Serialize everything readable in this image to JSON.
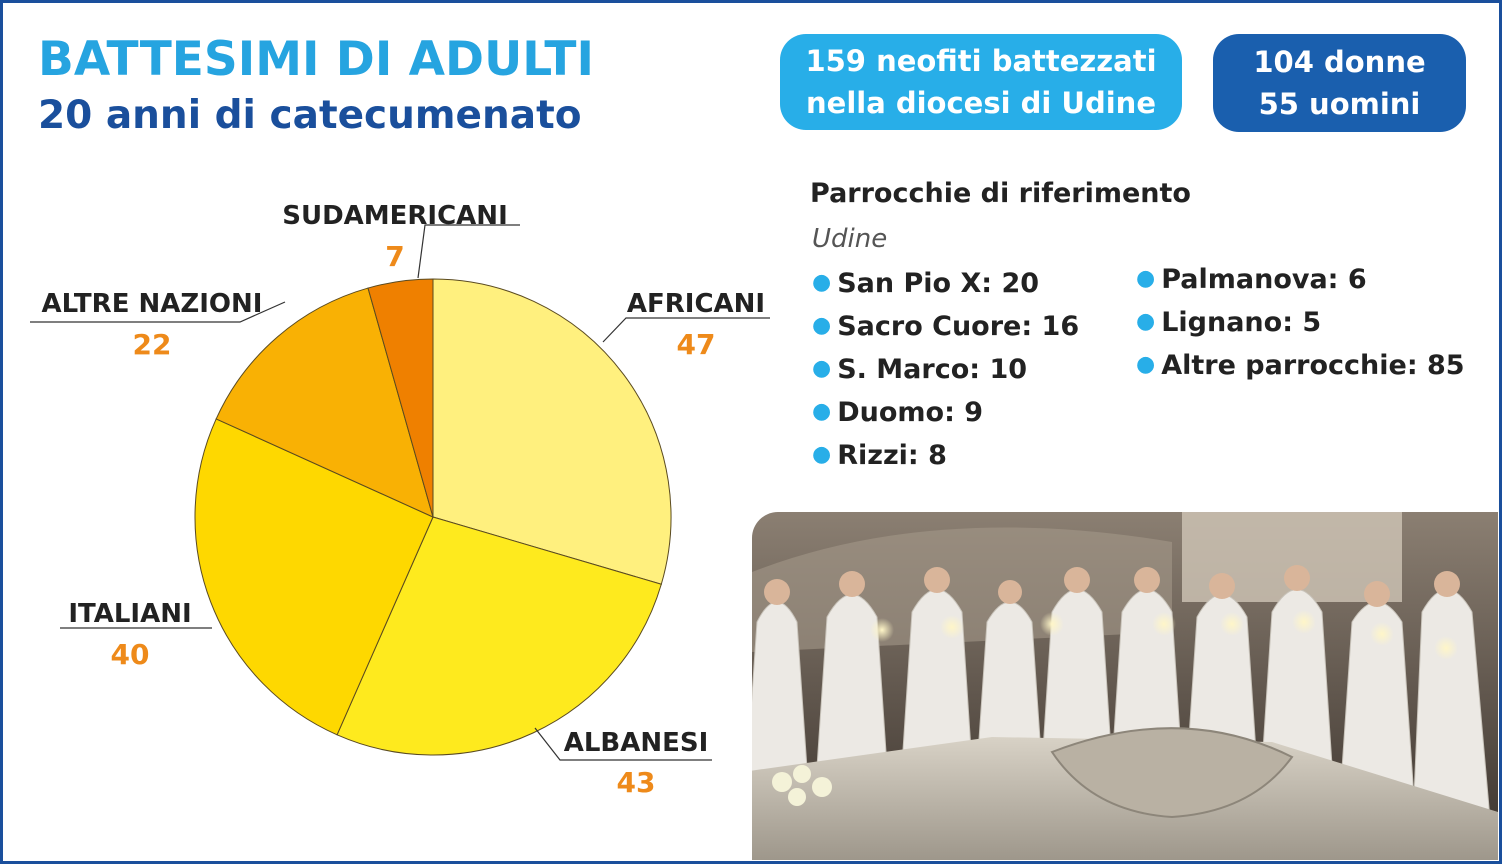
{
  "header": {
    "title": "BATTESIMI DI ADULTI",
    "subtitle": "20 anni di catecumenato"
  },
  "badges": [
    {
      "line1": "159 neofiti battezzati",
      "line2": "nella diocesi di Udine",
      "color": "#28aee8"
    },
    {
      "line1": "104 donne",
      "line2": "55 uomini",
      "color": "#1a5fae"
    }
  ],
  "parishes": {
    "title": "Parrocchie di riferimento",
    "city": "Udine",
    "col1": [
      "San Pio X: 20",
      "Sacro Cuore: 16",
      "S. Marco: 10",
      "Duomo: 9",
      "Rizzi: 8"
    ],
    "col2": [
      "Palmanova: 6",
      "Lignano: 5",
      "Altre parrocchie: 85"
    ]
  },
  "chart_data": {
    "type": "pie",
    "title": "",
    "categories": [
      "AFRICANI",
      "ALBANESI",
      "ITALIANI",
      "ALTRE NAZIONI",
      "SUDAMERICANI"
    ],
    "values": [
      47,
      43,
      40,
      22,
      7
    ],
    "colors": [
      "#fff07e",
      "#feea1e",
      "#fed800",
      "#f9b104",
      "#ef8000"
    ],
    "value_label_color": "#ee8a1a",
    "start": "12 o'clock",
    "direction": "clockwise",
    "legend": "none"
  },
  "photo": {
    "description_icon": "baptism-photo"
  }
}
